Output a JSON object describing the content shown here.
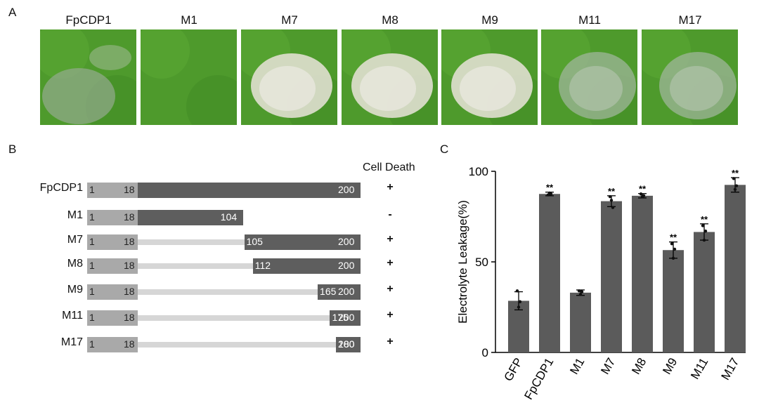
{
  "panel_a": {
    "letter": "A",
    "titles": [
      "FpCDP1",
      "M1",
      "M7",
      "M8",
      "M9",
      "M11",
      "M17"
    ],
    "photos": [
      {
        "lesion": "mild-speckled"
      },
      {
        "lesion": "none"
      },
      {
        "lesion": "strong-pale"
      },
      {
        "lesion": "strong-pale"
      },
      {
        "lesion": "strong-pale"
      },
      {
        "lesion": "speckled"
      },
      {
        "lesion": "speckled"
      }
    ]
  },
  "panel_b": {
    "letter": "B",
    "header": "Cell Death",
    "constructs": [
      {
        "name": "FpCDP1",
        "signal_start": "1",
        "signal_end": "18",
        "seg_start": "",
        "seg_end": "200",
        "start_value": 18,
        "end_value": 200,
        "sign": "+"
      },
      {
        "name": "M1",
        "signal_start": "1",
        "signal_end": "18",
        "seg_start": "",
        "seg_end": "104",
        "start_value": 18,
        "end_value": 104,
        "sign": "-"
      },
      {
        "name": "M7",
        "signal_start": "1",
        "signal_end": "18",
        "seg_start": "105",
        "seg_end": "200",
        "start_value": 105,
        "end_value": 200,
        "sign": "+"
      },
      {
        "name": "M8",
        "signal_start": "1",
        "signal_end": "18",
        "seg_start": "112",
        "seg_end": "200",
        "start_value": 112,
        "end_value": 200,
        "sign": "+"
      },
      {
        "name": "M9",
        "signal_start": "1",
        "signal_end": "18",
        "seg_start": "165",
        "seg_end": "200",
        "start_value": 165,
        "end_value": 200,
        "sign": "+"
      },
      {
        "name": "M11",
        "signal_start": "1",
        "signal_end": "18",
        "seg_start": "175",
        "seg_end": "200",
        "start_value": 175,
        "end_value": 200,
        "sign": "+"
      },
      {
        "name": "M17",
        "signal_start": "1",
        "signal_end": "18",
        "seg_start": "180",
        "seg_end": "200",
        "start_value": 180,
        "end_value": 200,
        "sign": "+"
      }
    ]
  },
  "chart_data": {
    "type": "bar",
    "panel_letter": "C",
    "ylabel": "Electrolyte Leakage(%)",
    "ylim": [
      0,
      100
    ],
    "yticks": [
      "0",
      "50",
      "100"
    ],
    "categories": [
      "GFP",
      "FpCDP1",
      "M1",
      "M7",
      "M8",
      "M9",
      "M11",
      "M17"
    ],
    "values": [
      28.5,
      87.5,
      33,
      83.5,
      86.5,
      56.5,
      66.5,
      92.5
    ],
    "errors": [
      5,
      1,
      1.5,
      3,
      1.2,
      4.5,
      4.5,
      4
    ],
    "points": [
      [
        34,
        25,
        28
      ],
      [
        87,
        88,
        87.5
      ],
      [
        34,
        32,
        33.5
      ],
      [
        86,
        84,
        80
      ],
      [
        87.5,
        86,
        86.5
      ],
      [
        60,
        52,
        57
      ],
      [
        70,
        62,
        67
      ],
      [
        96,
        90,
        92
      ]
    ],
    "significance": [
      "",
      "**",
      "",
      "**",
      "**",
      "**",
      "**",
      "**"
    ],
    "bar_color": "#5b5b5b"
  }
}
